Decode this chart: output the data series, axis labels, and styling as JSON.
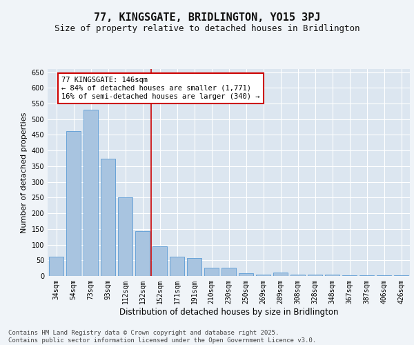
{
  "title1": "77, KINGSGATE, BRIDLINGTON, YO15 3PJ",
  "title2": "Size of property relative to detached houses in Bridlington",
  "xlabel": "Distribution of detached houses by size in Bridlington",
  "ylabel": "Number of detached properties",
  "categories": [
    "34sqm",
    "54sqm",
    "73sqm",
    "93sqm",
    "112sqm",
    "132sqm",
    "152sqm",
    "171sqm",
    "191sqm",
    "210sqm",
    "230sqm",
    "250sqm",
    "269sqm",
    "289sqm",
    "308sqm",
    "328sqm",
    "348sqm",
    "367sqm",
    "387sqm",
    "406sqm",
    "426sqm"
  ],
  "values": [
    62,
    462,
    530,
    373,
    250,
    142,
    95,
    62,
    57,
    26,
    26,
    8,
    5,
    10,
    5,
    5,
    5,
    2,
    3,
    2,
    2
  ],
  "bar_color": "#a8c4e0",
  "bar_edge_color": "#5b9bd5",
  "vline_x_index": 5.5,
  "vline_color": "#cc0000",
  "annotation_text": "77 KINGSGATE: 146sqm\n← 84% of detached houses are smaller (1,771)\n16% of semi-detached houses are larger (340) →",
  "annotation_box_color": "#ffffff",
  "annotation_box_edge": "#cc0000",
  "ylim": [
    0,
    660
  ],
  "yticks": [
    0,
    50,
    100,
    150,
    200,
    250,
    300,
    350,
    400,
    450,
    500,
    550,
    600,
    650
  ],
  "background_color": "#dce6f0",
  "grid_color": "#ffffff",
  "fig_background": "#f0f4f8",
  "footer_text": "Contains HM Land Registry data © Crown copyright and database right 2025.\nContains public sector information licensed under the Open Government Licence v3.0.",
  "title1_fontsize": 11,
  "title2_fontsize": 9,
  "xlabel_fontsize": 8.5,
  "ylabel_fontsize": 8,
  "tick_fontsize": 7,
  "annotation_fontsize": 7.5,
  "footer_fontsize": 6.5
}
